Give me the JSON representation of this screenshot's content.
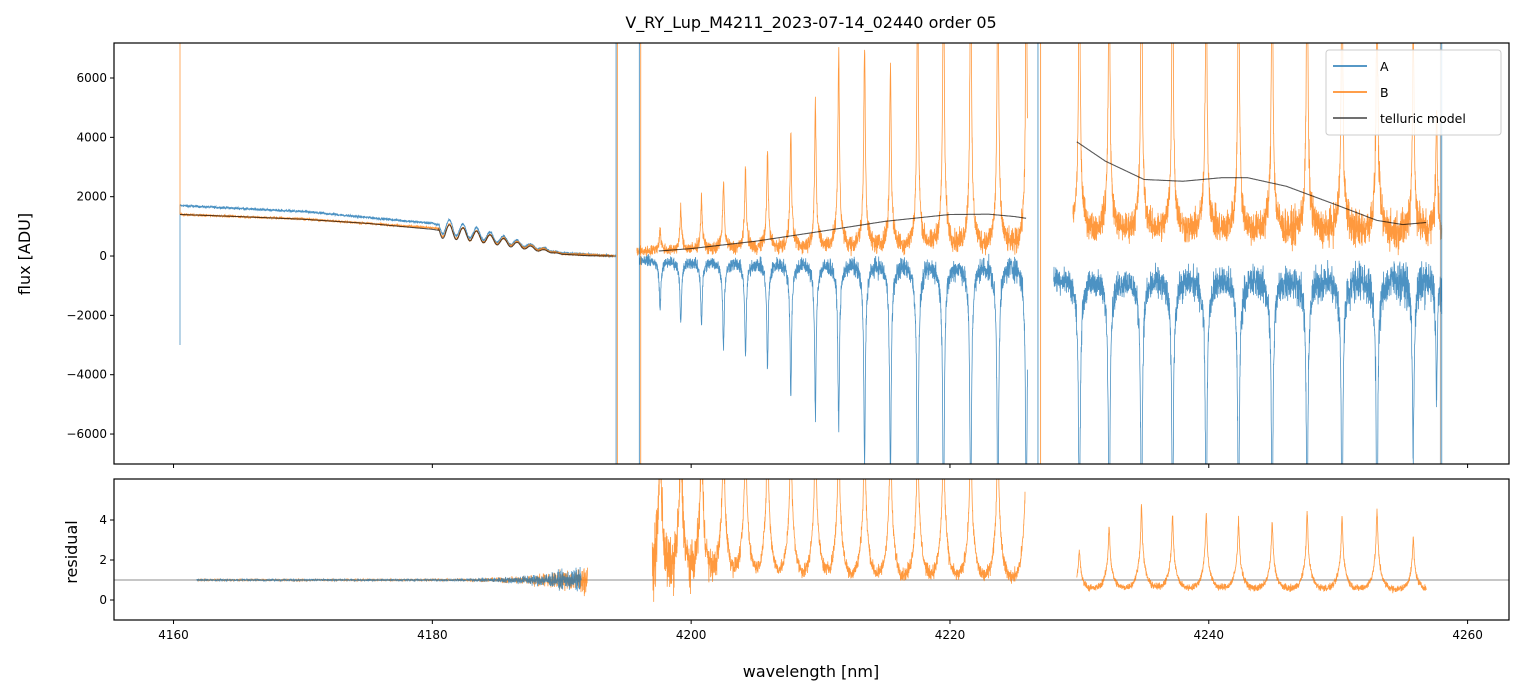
{
  "chart_data": [
    {
      "type": "line",
      "title": "V_RY_Lup_M4211_2023-07-14_02440  order 05",
      "xlabel": "",
      "ylabel": "flux [ADU]",
      "xlim": [
        4155.4,
        4263.2
      ],
      "ylim": [
        -7010,
        7180
      ],
      "xticks": [
        4160,
        4180,
        4200,
        4220,
        4240,
        4260
      ],
      "yticks": [
        6000,
        4000,
        2000,
        0,
        -2000,
        -4000,
        -6000
      ],
      "ytick_labels": [
        "6000",
        "4000",
        "2000",
        "0",
        "−2000",
        "−4000",
        "−6000"
      ],
      "legend": {
        "placement": "top-right",
        "entries": [
          "A",
          "B",
          "telluric model"
        ]
      },
      "colors": {
        "A": "#1f77b4",
        "B": "#ff7f0e",
        "telluric model": "#404040"
      },
      "grid": false,
      "series": [
        {
          "name": "A",
          "segments": [
            {
              "x_range": [
                4160.5,
                4194.2
              ],
              "continuum": [
                [
                  4160.5,
                  1700
                ],
                [
                  4170,
                  1500
                ],
                [
                  4180,
                  1100
                ],
                [
                  4186,
                  500
                ],
                [
                  4190,
                  100
                ],
                [
                  4194.2,
                  0
                ]
              ]
            },
            {
              "x_range": [
                4196.0,
                4226.0
              ],
              "baseline": -100
            },
            {
              "x_range": [
                4228.0,
                4258.0
              ],
              "baseline": -650
            }
          ]
        },
        {
          "name": "B",
          "segments": [
            {
              "x_range": [
                4160.5,
                4194.2
              ],
              "continuum": [
                [
                  4160.5,
                  1400
                ],
                [
                  4170,
                  1250
                ],
                [
                  4180,
                  950
                ],
                [
                  4186,
                  450
                ],
                [
                  4190,
                  80
                ],
                [
                  4194.2,
                  0
                ]
              ]
            },
            {
              "x_range": [
                4195.8,
                4226.0
              ],
              "baseline": 150
            },
            {
              "x_range": [
                4229.5,
                4258.0
              ],
              "baseline": 700
            }
          ]
        },
        {
          "name": "telluric model",
          "points": [
            [
              [
                4160.5,
                1400
              ],
              [
                4165,
                1330
              ],
              [
                4170,
                1240
              ],
              [
                4175,
                1100
              ],
              [
                4180,
                900
              ],
              [
                4183,
                700
              ],
              [
                4186,
                420
              ],
              [
                4188,
                230
              ],
              [
                4190,
                60
              ],
              [
                4192,
                10
              ],
              [
                4194,
                0
              ]
            ],
            [
              [
                4197.5,
                170
              ],
              [
                4200,
                250
              ],
              [
                4205,
                500
              ],
              [
                4210,
                830
              ],
              [
                4215,
                1170
              ],
              [
                4220,
                1400
              ],
              [
                4223,
                1410
              ],
              [
                4225,
                1330
              ],
              [
                4225.9,
                1270
              ]
            ],
            [
              [
                4229.8,
                3850
              ],
              [
                4232,
                3200
              ],
              [
                4235,
                2580
              ],
              [
                4238,
                2520
              ],
              [
                4241,
                2640
              ],
              [
                4243,
                2640
              ],
              [
                4246,
                2350
              ],
              [
                4250,
                1700
              ],
              [
                4253,
                1200
              ],
              [
                4255,
                1060
              ],
              [
                4256.8,
                1130
              ]
            ]
          ]
        }
      ],
      "telluric_lines": {
        "centers_nm": [
          4197.6,
          4199.2,
          4200.8,
          4202.5,
          4204.2,
          4205.9,
          4207.7,
          4209.6,
          4211.4,
          4213.4,
          4215.4,
          4217.5,
          4219.5,
          4221.6,
          4223.7,
          4225.9,
          4230.0,
          4232.3,
          4234.8,
          4237.2,
          4239.8,
          4242.3,
          4244.9,
          4247.6,
          4250.3,
          4253.0,
          4255.8,
          4257.6
        ],
        "B_peak_adu": [
          650,
          1250,
          1550,
          2100,
          2500,
          3000,
          3500,
          4300,
          5900,
          6100,
          5500,
          8000,
          9000,
          9000,
          9000,
          9000,
          9000,
          9000,
          9000,
          9000,
          9000,
          9000,
          9000,
          9000,
          9000,
          8000,
          6500,
          3500
        ],
        "A_dip_adu": [
          -1500,
          -1900,
          -1900,
          -2600,
          -2900,
          -3200,
          -4000,
          -4600,
          -5000,
          -6100,
          -6500,
          -8000,
          -8000,
          -8000,
          -8000,
          -8000,
          -8000,
          -8000,
          -8000,
          -8000,
          -8000,
          -8000,
          -8000,
          -8000,
          -8000,
          -8000,
          -5500,
          -3500
        ],
        "residual_peak": [
          6,
          6,
          6,
          6,
          6,
          6,
          6,
          6,
          6,
          6,
          6,
          6,
          6,
          6,
          6,
          6,
          2.4,
          3.6,
          4.6,
          4.1,
          4.2,
          3.9,
          3.8,
          4.3,
          4.1,
          4.4,
          3.0,
          2.0
        ]
      }
    },
    {
      "type": "line",
      "xlabel": "wavelength [nm]",
      "ylabel": "residual",
      "xlim": [
        4155.4,
        4263.2
      ],
      "ylim": [
        -1.0,
        6.05
      ],
      "xticks": [
        4160,
        4180,
        4200,
        4220,
        4240,
        4260
      ],
      "xtick_labels": [
        "4160",
        "4180",
        "4200",
        "4220",
        "4240",
        "4260"
      ],
      "yticks": [
        0,
        2,
        4
      ],
      "ytick_labels": [
        "0",
        "2",
        "4"
      ],
      "reference_line_y": 1,
      "series": [
        {
          "name": "A",
          "segments": [
            {
              "x_range": [
                4161.8,
                4191.5
              ],
              "baseline": 1.0
            }
          ]
        },
        {
          "name": "B",
          "segments": [
            {
              "x_range": [
                4161.8,
                4192.0
              ],
              "baseline": 1.0
            },
            {
              "x_range": [
                4197.0,
                4225.8
              ],
              "baseline": 0.4
            },
            {
              "x_range": [
                4229.8,
                4256.8
              ],
              "baseline": 0.35
            }
          ]
        }
      ]
    }
  ]
}
